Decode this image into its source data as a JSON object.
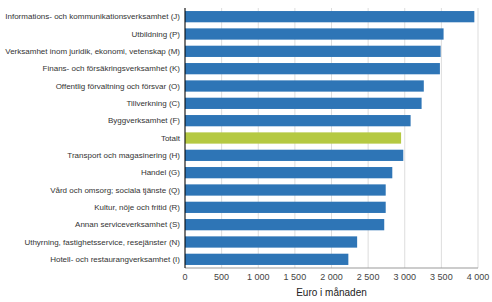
{
  "chart_data": {
    "type": "bar",
    "orientation": "horizontal",
    "categories": [
      "Informations- och kommunikationsverksamhet (J)",
      "Utbildning (P)",
      "Verksamhet inom juridik, ekonomi, vetenskap (M)",
      "Finans- och försäkringsverksamhet (K)",
      "Offentlig förvaltning och försvar (O)",
      "Tillverkning (C)",
      "Byggverksamhet (F)",
      "Totalt",
      "Transport och magasinering (H)",
      "Handel (G)",
      "Vård och omsorg; sociala tjänste (Q)",
      "Kultur, nöje och fritid (R)",
      "Annan serviceverksamhet (S)",
      "Uthyrning, fastighetsservice, resejänster (N)",
      "Hotell- och restaurangverksamhet (I)"
    ],
    "values": [
      3950,
      3530,
      3490,
      3480,
      3260,
      3230,
      3080,
      2950,
      2980,
      2830,
      2740,
      2740,
      2720,
      2350,
      2230
    ],
    "colors": [
      "#2e75b6",
      "#2e75b6",
      "#2e75b6",
      "#2e75b6",
      "#2e75b6",
      "#2e75b6",
      "#2e75b6",
      "#b5c942",
      "#2e75b6",
      "#2e75b6",
      "#2e75b6",
      "#2e75b6",
      "#2e75b6",
      "#2e75b6",
      "#2e75b6"
    ],
    "x_label": "Euro i månaden",
    "xlim": [
      0,
      4000
    ],
    "xticks": [
      0,
      500,
      {
        "value": 1000,
        "label": "1 000"
      },
      {
        "value": 1500,
        "label": "1 500"
      },
      {
        "value": 2000,
        "label": "2 000"
      },
      {
        "value": 2500,
        "label": "2 500"
      },
      {
        "value": 3000,
        "label": "3 000"
      },
      {
        "value": 3500,
        "label": "3 500"
      },
      {
        "value": 4000,
        "label": "4 000"
      }
    ],
    "grid": true
  }
}
